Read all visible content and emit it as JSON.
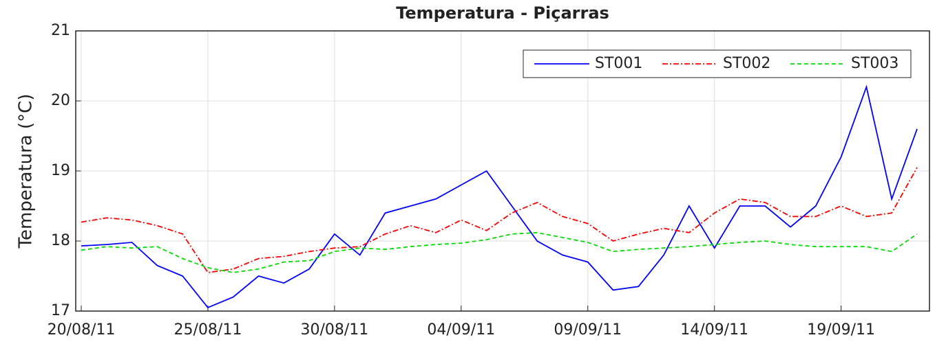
{
  "chart_data": {
    "type": "line",
    "title": "Temperatura - Piçarras",
    "ylabel": "Temperatura (°C)",
    "x": [
      "20/08/11",
      "21/08/11",
      "22/08/11",
      "23/08/11",
      "24/08/11",
      "25/08/11",
      "26/08/11",
      "27/08/11",
      "28/08/11",
      "29/08/11",
      "30/08/11",
      "31/08/11",
      "01/09/11",
      "02/09/11",
      "03/09/11",
      "04/09/11",
      "05/09/11",
      "06/09/11",
      "07/09/11",
      "08/09/11",
      "09/09/11",
      "10/09/11",
      "11/09/11",
      "12/09/11",
      "13/09/11",
      "14/09/11",
      "15/09/11",
      "16/09/11",
      "17/09/11",
      "18/09/11",
      "19/09/11",
      "20/09/11",
      "21/09/11",
      "22/09/11"
    ],
    "series": [
      {
        "name": "ST001",
        "color": "#0000ff",
        "linestyle": "solid",
        "values": [
          17.93,
          17.95,
          17.98,
          17.65,
          17.5,
          17.05,
          17.2,
          17.5,
          17.4,
          17.6,
          18.1,
          17.8,
          18.4,
          18.5,
          18.6,
          18.8,
          19.0,
          18.5,
          18.0,
          17.8,
          17.7,
          17.3,
          17.35,
          17.8,
          18.5,
          17.9,
          18.5,
          18.5,
          18.2,
          18.5,
          19.2,
          20.2,
          18.6,
          19.6
        ]
      },
      {
        "name": "ST002",
        "color": "#ff0000",
        "linestyle": "dashdot",
        "values": [
          18.27,
          18.33,
          18.3,
          18.22,
          18.1,
          17.55,
          17.6,
          17.75,
          17.78,
          17.85,
          17.9,
          17.92,
          18.1,
          18.22,
          18.12,
          18.3,
          18.15,
          18.4,
          18.55,
          18.35,
          18.25,
          18.0,
          18.1,
          18.18,
          18.12,
          18.4,
          18.6,
          18.55,
          18.35,
          18.35,
          18.5,
          18.35,
          18.4,
          19.05
        ]
      },
      {
        "name": "ST003",
        "color": "#00dd00",
        "linestyle": "dashed",
        "values": [
          17.87,
          17.92,
          17.9,
          17.92,
          17.75,
          17.62,
          17.55,
          17.6,
          17.7,
          17.72,
          17.85,
          17.9,
          17.88,
          17.92,
          17.95,
          17.97,
          18.02,
          18.1,
          18.12,
          18.05,
          17.98,
          17.85,
          17.88,
          17.9,
          17.92,
          17.95,
          17.98,
          18.0,
          17.95,
          17.92,
          17.92,
          17.92,
          17.85,
          18.1
        ]
      }
    ],
    "xlim": [
      "20/08/11",
      "22/09/11"
    ],
    "xticks": [
      "20/08/11",
      "25/08/11",
      "30/08/11",
      "04/09/11",
      "09/09/11",
      "14/09/11",
      "19/09/11"
    ],
    "ylim": [
      17,
      21
    ],
    "yticks": [
      17,
      18,
      19,
      20,
      21
    ],
    "grid": true,
    "legend": "top-right"
  }
}
